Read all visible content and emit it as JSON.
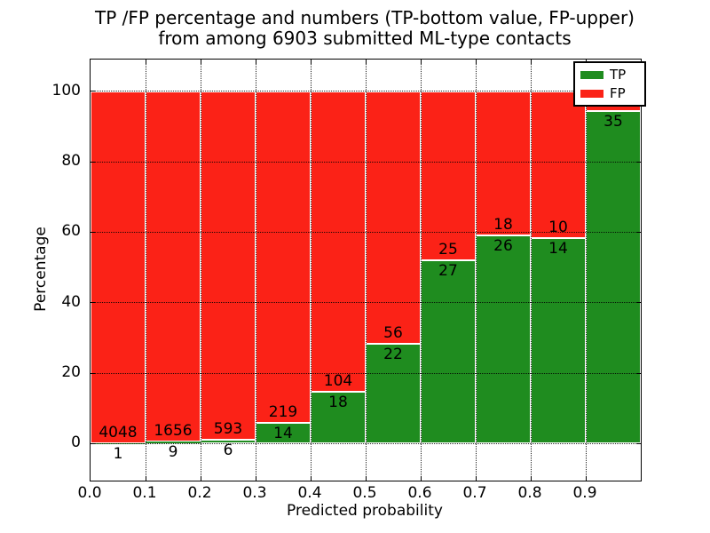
{
  "title": {
    "line1": "TP /FP percentage and numbers (TP-bottom value, FP-upper)",
    "line2": "from among 6903 submitted ML-type contacts"
  },
  "axes": {
    "xlabel": "Predicted probability",
    "ylabel": "Percentage",
    "xtick_labels": [
      "0.0",
      "0.1",
      "0.2",
      "0.3",
      "0.4",
      "0.5",
      "0.6",
      "0.7",
      "0.8",
      "0.9"
    ],
    "ytick_labels": [
      "0",
      "20",
      "40",
      "60",
      "80",
      "100"
    ],
    "ytick_values": [
      0,
      20,
      40,
      60,
      80,
      100
    ]
  },
  "legend": {
    "items": [
      {
        "label": "TP",
        "color": "#1f8c1f"
      },
      {
        "label": "FP",
        "color": "#fb2217"
      }
    ]
  },
  "colors": {
    "tp": "#1f8c1f",
    "fp": "#fb2217",
    "grid": "#000000",
    "background": "#ffffff"
  },
  "chart_data": {
    "type": "bar",
    "stacked": true,
    "title": "TP /FP percentage and numbers (TP-bottom value, FP-upper) from among 6903 submitted ML-type contacts",
    "xlabel": "Predicted probability",
    "ylabel": "Percentage",
    "grid": true,
    "legend_position": "upper right",
    "xlim": [
      0.0,
      1.0
    ],
    "ylim": [
      -10.5,
      109
    ],
    "bins": [
      "0.0-0.1",
      "0.1-0.2",
      "0.2-0.3",
      "0.3-0.4",
      "0.4-0.5",
      "0.5-0.6",
      "0.6-0.7",
      "0.7-0.8",
      "0.8-0.9",
      "0.9-1.0"
    ],
    "series": [
      {
        "name": "TP",
        "color": "#1f8c1f",
        "counts": [
          1,
          9,
          6,
          14,
          18,
          22,
          27,
          26,
          14,
          35
        ],
        "percent": [
          0.02,
          0.54,
          1.0,
          6.0,
          14.8,
          28.2,
          51.9,
          59.1,
          58.3,
          94.5
        ]
      },
      {
        "name": "FP",
        "color": "#fb2217",
        "counts": [
          4048,
          1656,
          593,
          219,
          104,
          56,
          25,
          18,
          10,
          null
        ],
        "percent": [
          99.98,
          99.46,
          99.0,
          94.0,
          85.2,
          71.8,
          48.1,
          40.9,
          41.7,
          5.5
        ]
      }
    ],
    "fp_labels": [
      "4048",
      "1656",
      "593",
      "219",
      "104",
      "56",
      "25",
      "18",
      "10",
      ""
    ],
    "tp_labels": [
      "1",
      "9",
      "6",
      "14",
      "18",
      "22",
      "27",
      "26",
      "14",
      "35"
    ]
  }
}
